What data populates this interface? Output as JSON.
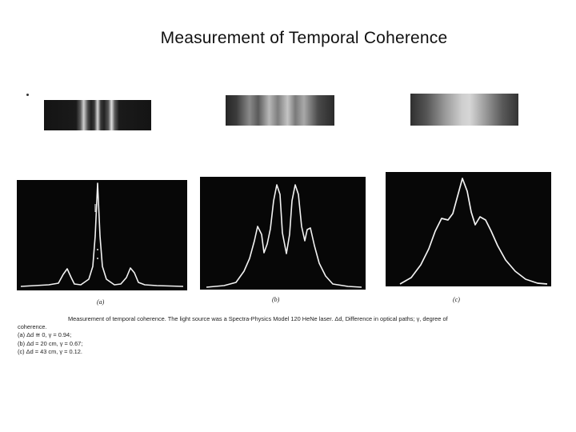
{
  "slide": {
    "title": "Measurement of Temporal Coherence"
  },
  "panels": [
    {
      "label": "(a)"
    },
    {
      "label": "(b)"
    },
    {
      "label": "(c)"
    }
  ],
  "caption": {
    "first": "Measurement of temporal coherence. The light source was a Spectra-Physics Model 120 HeNe laser. Δd, Difference in optical paths; γ, degree of",
    "second": "coherence.",
    "a": "(a) Δd ≅ 0, γ = 0.94;",
    "b": "(b) Δd = 20 cm, γ = 0.67;",
    "c": "(c) Δd = 43 cm, γ = 0.12."
  },
  "colors": {
    "background": "#ffffff",
    "oscilloscope": "#070707",
    "trace": "#f2f2f2"
  }
}
